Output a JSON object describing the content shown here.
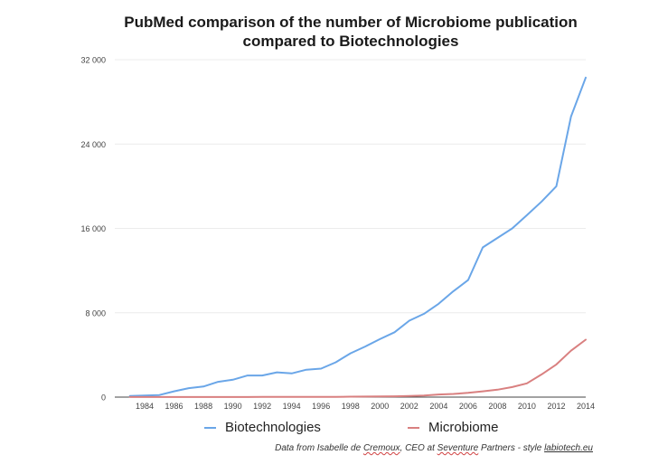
{
  "chart_data": {
    "type": "line",
    "title": "PubMed comparison of the number of Microbiome publication compared to Biotechnologies",
    "title_lines": [
      "PubMed comparison of the number of Microbiome publication",
      "compared to Biotechnologies"
    ],
    "xlabel": "",
    "ylabel": "",
    "x": [
      1983,
      1984,
      1985,
      1986,
      1987,
      1988,
      1989,
      1990,
      1991,
      1992,
      1993,
      1994,
      1995,
      1996,
      1997,
      1998,
      1999,
      2000,
      2001,
      2002,
      2003,
      2004,
      2005,
      2006,
      2007,
      2008,
      2009,
      2010,
      2011,
      2012,
      2013,
      2014
    ],
    "x_ticks": [
      "1984",
      "1986",
      "1988",
      "1990",
      "1992",
      "1994",
      "1996",
      "1998",
      "2000",
      "2002",
      "2004",
      "2006",
      "2008",
      "2010",
      "2012",
      "2014"
    ],
    "x_tick_values": [
      1984,
      1986,
      1988,
      1990,
      1992,
      1994,
      1996,
      1998,
      2000,
      2002,
      2004,
      2006,
      2008,
      2010,
      2012,
      2014
    ],
    "xlim": [
      1982,
      2014
    ],
    "ylim": [
      0,
      32000
    ],
    "y_ticks": [
      "0",
      "8 000",
      "16 000",
      "24 000",
      "32 000"
    ],
    "y_tick_values": [
      0,
      8000,
      16000,
      24000,
      32000
    ],
    "grid": true,
    "legend_position": "bottom",
    "series": [
      {
        "name": "Biotechnologies",
        "color": "#6aa6e8",
        "values": [
          100,
          150,
          200,
          550,
          850,
          1000,
          1450,
          1650,
          2050,
          2050,
          2350,
          2250,
          2600,
          2700,
          3300,
          4150,
          4800,
          5500,
          6150,
          7250,
          7900,
          8850,
          10050,
          11100,
          14200,
          15100,
          16000,
          17250,
          18550,
          20000,
          26600,
          30300
        ]
      },
      {
        "name": "Microbiome",
        "color": "#d98080",
        "values": [
          5,
          5,
          5,
          5,
          5,
          10,
          10,
          10,
          10,
          15,
          15,
          20,
          20,
          25,
          30,
          40,
          50,
          60,
          75,
          100,
          150,
          250,
          300,
          400,
          550,
          700,
          950,
          1300,
          2150,
          3100,
          4400,
          5450
        ]
      }
    ]
  },
  "footer": {
    "prefix": "Data from Isabelle de ",
    "name_word": "Cremoux",
    "middle": ", CEO at ",
    "company_word": "Seventure",
    "suffix": " Partners - style ",
    "link_text": "labiotech.eu"
  }
}
